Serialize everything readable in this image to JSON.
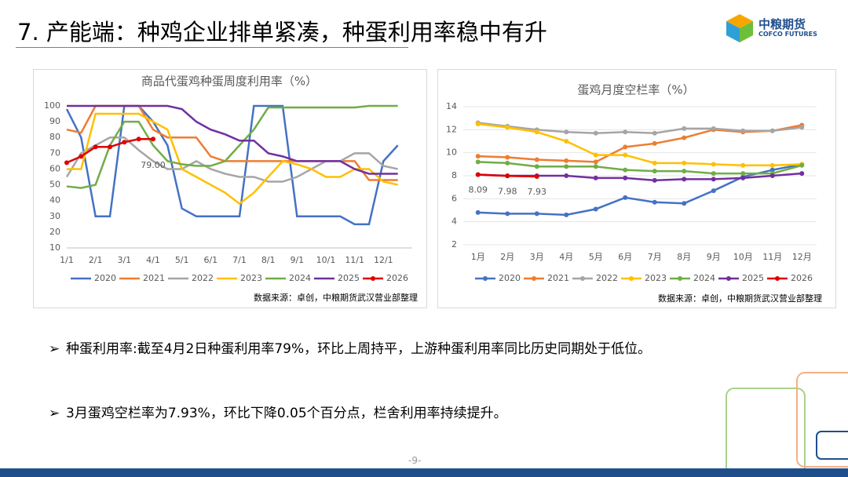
{
  "slide": {
    "title": "7. 产能端：种鸡企业排单紧凑，种蛋利用率稳中有升",
    "logo": {
      "name": "中粮期货",
      "english": "COFCO FUTURES"
    },
    "bullets": [
      "种蛋利用率:截至4月2日种蛋利用率79%，环比上周持平，上游种蛋利用率同比历史同期处于低位。",
      "3月蛋鸡空栏率为7.93%，环比下降0.05个百分点，栏舍利用率持续提升。"
    ],
    "page": "-9-"
  },
  "chart_data": [
    {
      "type": "line",
      "title": "商品代蛋鸡种蛋周度利用率（%）",
      "source": "数据来源：卓创，中粮期货武汉营业部整理",
      "grid": false,
      "categories": [
        "1/1",
        null,
        "2/1",
        null,
        "3/1",
        null,
        "4/1",
        null,
        "5/1",
        null,
        "6/1",
        null,
        "7/1",
        null,
        "8/1",
        null,
        "9/1",
        null,
        "10/1",
        null,
        "11/1",
        null,
        "12/1",
        null
      ],
      "ylim": [
        10,
        100
      ],
      "yticks": [
        10,
        20,
        30,
        40,
        50,
        60,
        70,
        80,
        90,
        100
      ],
      "series": [
        {
          "name": "2020",
          "color": "#4472c4",
          "markers": false,
          "values": [
            98,
            80,
            30,
            30,
            100,
            100,
            90,
            75,
            35,
            30,
            30,
            30,
            30,
            100,
            100,
            100,
            30,
            30,
            30,
            30,
            25,
            25,
            65,
            75
          ]
        },
        {
          "name": "2021",
          "color": "#ed7d31",
          "markers": false,
          "values": [
            85,
            83,
            100,
            100,
            100,
            100,
            85,
            80,
            80,
            80,
            68,
            65,
            65,
            65,
            65,
            65,
            65,
            65,
            65,
            65,
            65,
            53,
            53,
            53
          ]
        },
        {
          "name": "2022",
          "color": "#a5a5a5",
          "markers": false,
          "values": [
            55,
            70,
            75,
            80,
            80,
            72,
            65,
            60,
            60,
            65,
            60,
            57,
            55,
            55,
            52,
            52,
            55,
            60,
            65,
            65,
            70,
            70,
            62,
            60
          ]
        },
        {
          "name": "2023",
          "color": "#ffc000",
          "markers": false,
          "values": [
            60,
            60,
            95,
            95,
            95,
            95,
            90,
            85,
            60,
            55,
            50,
            45,
            38,
            45,
            55,
            65,
            63,
            60,
            55,
            55,
            60,
            60,
            52,
            50
          ]
        },
        {
          "name": "2024",
          "color": "#70ad47",
          "markers": false,
          "values": [
            49,
            48,
            50,
            75,
            90,
            90,
            75,
            65,
            63,
            62,
            62,
            65,
            75,
            85,
            99,
            99,
            99,
            99,
            99,
            99,
            99,
            100,
            100,
            100
          ]
        },
        {
          "name": "2025",
          "color": "#7030a0",
          "markers": false,
          "values": [
            100,
            100,
            100,
            100,
            100,
            100,
            100,
            100,
            98,
            90,
            85,
            82,
            78,
            78,
            70,
            68,
            65,
            65,
            65,
            65,
            60,
            57,
            57,
            57
          ]
        },
        {
          "name": "2026",
          "color": "#e00000",
          "markers": true,
          "values": [
            64,
            68,
            74,
            74,
            77,
            79,
            79,
            null,
            null,
            null,
            null,
            null,
            null,
            null,
            null,
            null,
            null,
            null,
            null,
            null,
            null,
            null,
            null,
            null
          ],
          "value_labels": [
            null,
            null,
            null,
            null,
            null,
            null,
            "79.00",
            null,
            null,
            null,
            null,
            null,
            null,
            null,
            null,
            null,
            null,
            null,
            null,
            null,
            null,
            null,
            null,
            null
          ]
        }
      ]
    },
    {
      "type": "line",
      "title": "蛋鸡月度空栏率（%）",
      "source": "数据来源：卓创，中粮期货武汉营业部整理",
      "grid": true,
      "categories": [
        "1月",
        "2月",
        "3月",
        "4月",
        "5月",
        "6月",
        "7月",
        "8月",
        "9月",
        "10月",
        "11月",
        "12月"
      ],
      "ylim": [
        2,
        14
      ],
      "yticks": [
        2,
        4,
        6,
        8,
        10,
        12,
        14
      ],
      "series": [
        {
          "name": "2020",
          "color": "#4472c4",
          "markers": true,
          "values": [
            4.8,
            4.7,
            4.7,
            4.6,
            5.1,
            6.1,
            5.7,
            5.6,
            6.7,
            7.9,
            8.5,
            9.0
          ]
        },
        {
          "name": "2021",
          "color": "#ed7d31",
          "markers": true,
          "values": [
            9.7,
            9.6,
            9.4,
            9.3,
            9.2,
            10.5,
            10.8,
            11.3,
            12.0,
            11.8,
            11.9,
            12.4
          ]
        },
        {
          "name": "2022",
          "color": "#a5a5a5",
          "markers": true,
          "values": [
            12.6,
            12.3,
            12.0,
            11.8,
            11.7,
            11.8,
            11.7,
            12.1,
            12.1,
            11.9,
            11.9,
            12.2
          ]
        },
        {
          "name": "2023",
          "color": "#ffc000",
          "markers": true,
          "values": [
            12.5,
            12.2,
            11.8,
            11.0,
            9.8,
            9.8,
            9.1,
            9.1,
            9.0,
            8.9,
            8.9,
            9.0
          ]
        },
        {
          "name": "2024",
          "color": "#70ad47",
          "markers": true,
          "values": [
            9.2,
            9.1,
            8.8,
            8.8,
            8.8,
            8.5,
            8.4,
            8.4,
            8.2,
            8.2,
            8.2,
            8.9
          ]
        },
        {
          "name": "2025",
          "color": "#7030a0",
          "markers": true,
          "values": [
            8.1,
            8.0,
            8.0,
            8.0,
            7.8,
            7.8,
            7.6,
            7.7,
            7.7,
            7.8,
            8.0,
            8.2
          ]
        },
        {
          "name": "2026",
          "color": "#e00000",
          "markers": true,
          "labels": true,
          "values": [
            8.09,
            7.98,
            7.93,
            null,
            null,
            null,
            null,
            null,
            null,
            null,
            null,
            null
          ]
        }
      ]
    }
  ]
}
